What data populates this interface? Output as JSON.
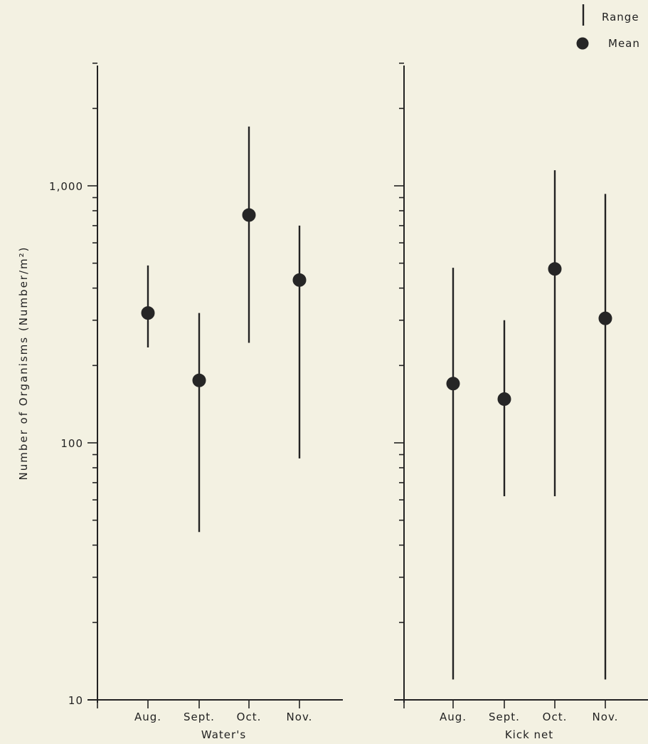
{
  "chart_data": [
    {
      "type": "scatter",
      "title": "",
      "xlabel": "Water's",
      "ylabel": "Number of Organisms (Number/m²)",
      "yscale": "log",
      "ylim": [
        10,
        3500
      ],
      "ytick_labels": [
        "10",
        "100",
        "1,000"
      ],
      "categories": [
        "Aug.",
        "Sept.",
        "Oct.",
        "Nov."
      ],
      "series": [
        {
          "name": "Mean",
          "values": [
            320,
            175,
            770,
            430
          ]
        },
        {
          "name": "Range",
          "low": [
            235,
            45,
            245,
            87
          ],
          "high": [
            490,
            320,
            1700,
            700
          ]
        }
      ]
    },
    {
      "type": "scatter",
      "title": "",
      "xlabel": "Kick net",
      "ylabel": "",
      "yscale": "log",
      "ylim": [
        10,
        3500
      ],
      "categories": [
        "Aug.",
        "Sept.",
        "Oct.",
        "Nov."
      ],
      "series": [
        {
          "name": "Mean",
          "values": [
            170,
            148,
            475,
            305
          ]
        },
        {
          "name": "Range",
          "low": [
            12,
            62,
            62,
            12
          ],
          "high": [
            480,
            300,
            1150,
            930
          ]
        }
      ]
    }
  ],
  "legend": {
    "items": [
      {
        "label": "Range",
        "symbol": "vertical-line"
      },
      {
        "label": "Mean",
        "symbol": "filled-circle"
      }
    ],
    "placement": "top-right"
  }
}
